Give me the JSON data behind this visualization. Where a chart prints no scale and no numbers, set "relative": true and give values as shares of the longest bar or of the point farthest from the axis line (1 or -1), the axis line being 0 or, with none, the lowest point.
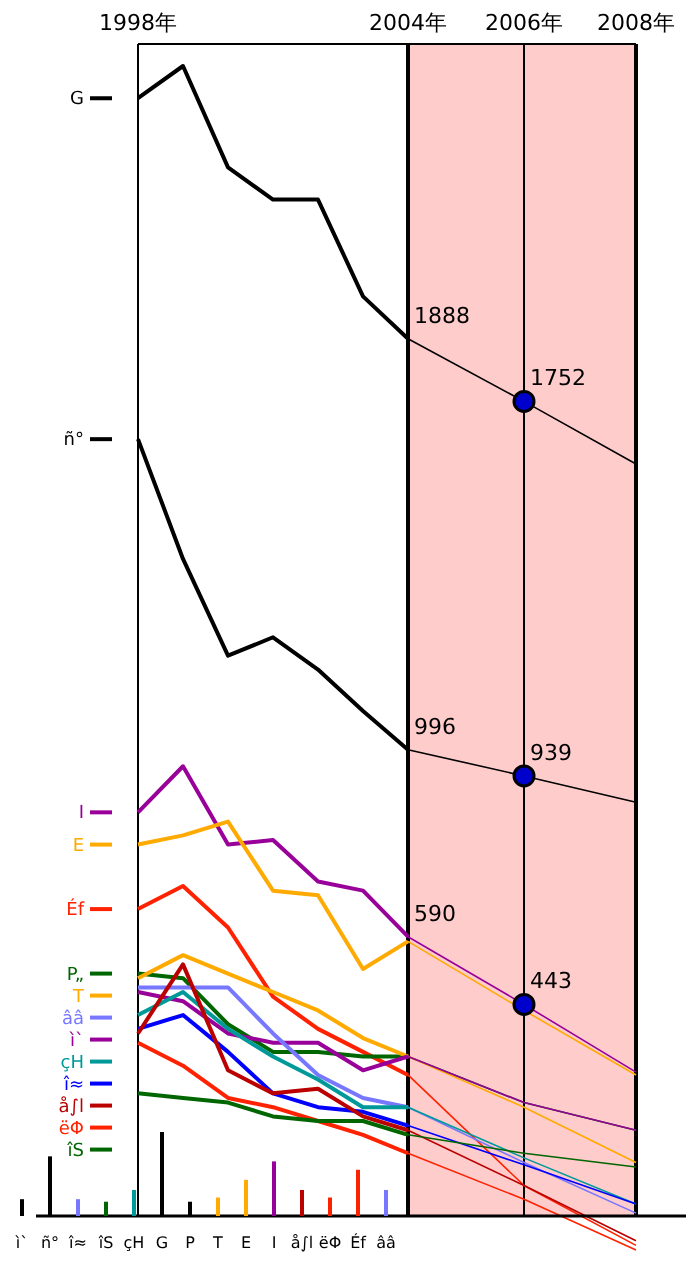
{
  "chart_data": [
    {
      "type": "line",
      "categories": [
        "1998年",
        null,
        null,
        null,
        null,
        null,
        "2004年",
        "2006年",
        "2008年"
      ],
      "legend": "left",
      "tick_labels": "x",
      "grid": "x",
      "bands": [
        {
          "axis": "x",
          "from": "2004年",
          "to": "2008年",
          "color": "#ffcccc"
        }
      ],
      "series": [
        {
          "name": "G",
          "color": "#000000",
          "values": [
            2410,
            2480,
            2260,
            2190,
            2190,
            1980,
            1888,
            1752,
            1616
          ],
          "value_labels": [
            null,
            null,
            null,
            null,
            null,
            null,
            "1888",
            null,
            null
          ]
        },
        {
          "name": "ñ°",
          "color": "#000000",
          "values": [
            1670,
            1410,
            1200,
            1240,
            1170,
            1080,
            996,
            939,
            882
          ],
          "value_labels": [
            null,
            null,
            null,
            null,
            null,
            null,
            "996",
            null,
            null
          ]
        },
        {
          "name": "I",
          "color": "#990099",
          "values": [
            860,
            960,
            790,
            800,
            710,
            690,
            590,
            443,
            296
          ],
          "value_labels": [
            null,
            null,
            null,
            null,
            null,
            null,
            "590",
            null,
            null
          ]
        },
        {
          "name": "E",
          "color": "#ffaa00",
          "values": [
            790,
            810,
            840,
            690,
            680,
            520,
            580,
            430,
            290
          ]
        },
        {
          "name": "Éf",
          "color": "#ff2200",
          "values": [
            650,
            700,
            610,
            460,
            390,
            340,
            290,
            50,
            -80
          ]
        },
        {
          "name": "P„",
          "color": "#006600",
          "values": [
            510,
            500,
            400,
            340,
            340,
            330,
            330,
            230,
            170
          ]
        },
        {
          "name": "T",
          "color": "#ffaa00",
          "values": [
            500,
            550,
            510,
            470,
            430,
            370,
            330,
            220,
            100
          ]
        },
        {
          "name": "ì`",
          "color": "#990099",
          "values": [
            470,
            450,
            380,
            360,
            360,
            300,
            330,
            230,
            170
          ]
        },
        {
          "name": "ââ",
          "color": "#7777ff",
          "values": [
            480,
            480,
            480,
            380,
            290,
            240,
            220,
            100,
            -10
          ]
        },
        {
          "name": "çH",
          "color": "#009999",
          "values": [
            420,
            470,
            390,
            330,
            280,
            220,
            220,
            110,
            10
          ]
        },
        {
          "name": "î≈",
          "color": "#0000ff",
          "values": [
            390,
            420,
            340,
            250,
            220,
            210,
            180,
            95,
            10
          ]
        },
        {
          "name": "å∫l",
          "color": "#bb0000",
          "values": [
            380,
            530,
            300,
            250,
            260,
            200,
            170,
            50,
            -70
          ]
        },
        {
          "name": "ëΦ",
          "color": "#ff2200",
          "values": [
            360,
            310,
            240,
            220,
            190,
            160,
            120,
            20,
            -90
          ]
        },
        {
          "name": "îS",
          "color": "#006600",
          "values": [
            250,
            240,
            230,
            200,
            190,
            190,
            160,
            120,
            90
          ]
        },
        {
          "type": "scatter",
          "marker": "circle",
          "color": "#0000cc",
          "x": [
            "2006年",
            "2006年",
            "2006年"
          ],
          "values": [
            1752,
            939,
            443
          ],
          "value_labels": [
            "1752",
            "939",
            "443"
          ]
        }
      ]
    },
    {
      "type": "bar",
      "relative": true,
      "categories": [
        "ì`",
        "ñ°",
        "î≈",
        "îS",
        "çH",
        "G",
        "P",
        "T",
        "E",
        "I",
        "å∫l",
        "ëΦ",
        "Éf",
        "ââ"
      ],
      "values": [
        0.2,
        0.71,
        0.2,
        0.17,
        0.31,
        1,
        0.17,
        0.22,
        0.43,
        0.65,
        0.31,
        0.22,
        0.55,
        0.31
      ],
      "colors": [
        "#000000",
        "#000000",
        "#7777ff",
        "#006600",
        "#009999",
        "#000000",
        "#000000",
        "#ffaa00",
        "#ffaa00",
        "#990099",
        "#bb0000",
        "#ff2200",
        "#ff2200",
        "#7777ff"
      ]
    }
  ]
}
